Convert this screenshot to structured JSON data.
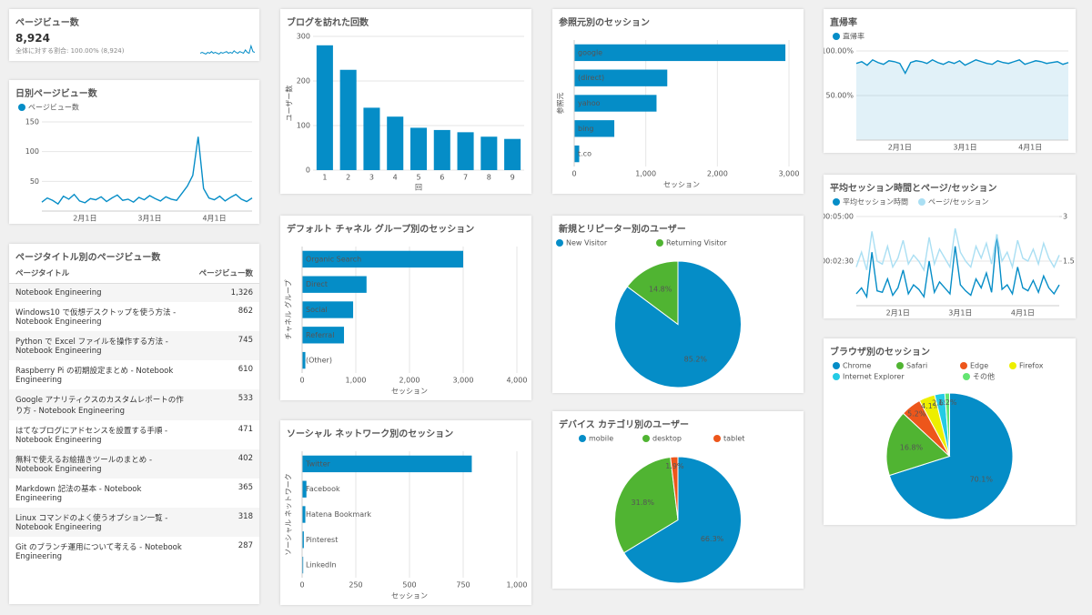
{
  "widgets": [
    {
      "title": "ページビュー数",
      "metric": {
        "value": "8,924",
        "note": "全体に対する割合: 100.00% (8,924)"
      },
      "chart_data": {
        "type": "line",
        "series": [
          {
            "color": "#058dc7",
            "values": [
              5,
              6,
              5,
              4,
              6,
              5,
              7,
              5,
              6,
              5,
              4,
              6,
              5,
              6,
              7,
              5,
              6,
              5,
              8,
              6,
              5,
              7,
              6,
              5,
              9,
              6,
              5,
              14,
              7,
              6
            ]
          }
        ],
        "ylim": [
          0,
          20
        ]
      }
    },
    {
      "title": "日別ページビュー数",
      "chart_data": {
        "type": "line",
        "categories": [
          null,
          null,
          null,
          null,
          null,
          null,
          null,
          null,
          "2月1日",
          null,
          null,
          null,
          null,
          null,
          null,
          null,
          null,
          null,
          null,
          null,
          "3月1日",
          null,
          null,
          null,
          null,
          null,
          null,
          null,
          null,
          null,
          null,
          null,
          "4月1日",
          null,
          null,
          null,
          null,
          null,
          null,
          null
        ],
        "series": [
          {
            "name": "ページビュー数",
            "color": "#058dc7",
            "values": [
              15,
              22,
              18,
              12,
              25,
              20,
              28,
              17,
              14,
              21,
              19,
              24,
              16,
              22,
              27,
              18,
              20,
              15,
              23,
              19,
              26,
              21,
              17,
              24,
              20,
              18,
              30,
              42,
              60,
              125,
              38,
              22,
              19,
              25,
              17,
              23,
              28,
              20,
              16,
              22
            ]
          }
        ],
        "ylim": [
          0,
          150
        ],
        "yticks": [
          50,
          100,
          150
        ],
        "grid": true
      }
    },
    {
      "title": "ページタイトル別のページビュー数",
      "table": {
        "header": [
          "ページタイトル",
          "ページビュー数"
        ],
        "rows": [
          [
            "Notebook Engineering",
            "1,326"
          ],
          [
            "Windows10 で仮想デスクトップを使う方法 - Notebook Engineering",
            "862"
          ],
          [
            "Python で Excel ファイルを操作する方法 - Notebook Engineering",
            "745"
          ],
          [
            "Raspberry Pi の初期設定まとめ - Notebook Engineering",
            "610"
          ],
          [
            "Google アナリティクスのカスタムレポートの作り方 - Notebook Engineering",
            "533"
          ],
          [
            "はてなブログにアドセンスを設置する手順 - Notebook Engineering",
            "471"
          ],
          [
            "無料で使えるお絵描きツールのまとめ - Notebook Engineering",
            "402"
          ],
          [
            "Markdown 記法の基本 - Notebook Engineering",
            "365"
          ],
          [
            "Linux コマンドのよく使うオプション一覧 - Notebook Engineering",
            "318"
          ],
          [
            "Git のブランチ運用について考える - Notebook Engineering",
            "287"
          ]
        ]
      }
    },
    {
      "title": "ブログを訪れた回数",
      "chart_data": {
        "type": "bar",
        "categories": [
          "1",
          "2",
          "3",
          "4",
          "5",
          "6",
          "7",
          "8",
          "9"
        ],
        "values": [
          280,
          225,
          140,
          120,
          95,
          90,
          85,
          75,
          70
        ],
        "color": "#058dc7",
        "ylim": [
          0,
          300
        ],
        "yticks": [
          0,
          100,
          200,
          300
        ],
        "grid": true,
        "x_label": "回",
        "y_label": "ユーザー数"
      }
    },
    {
      "title": "デフォルト チャネル グループ別のセッション",
      "chart_data": {
        "type": "hbar",
        "categories": [
          "Organic Search",
          "Direct",
          "Social",
          "Referral",
          "(Other)"
        ],
        "values": [
          3000,
          1200,
          950,
          780,
          60
        ],
        "color": "#058dc7",
        "xlim": [
          0,
          4000
        ],
        "xticks": [
          0,
          {
            "value": 1000,
            "label": "1,000"
          },
          {
            "value": 2000,
            "label": "2,000"
          },
          {
            "value": 3000,
            "label": "3,000"
          },
          {
            "value": 4000,
            "label": "4,000"
          }
        ],
        "grid": true,
        "x_label": "セッション",
        "y_label": "チャネル グループ"
      }
    },
    {
      "title": "ソーシャル ネットワーク別のセッション",
      "chart_data": {
        "type": "hbar",
        "categories": [
          "Twitter",
          "Facebook",
          "Hatena Bookmark",
          "Pinterest",
          "LinkedIn"
        ],
        "values": [
          790,
          20,
          15,
          8,
          5
        ],
        "color": "#058dc7",
        "xlim": [
          0,
          1000
        ],
        "xticks": [
          0,
          250,
          500,
          750,
          {
            "value": 1000,
            "label": "1,000"
          }
        ],
        "grid": true,
        "x_label": "セッション",
        "y_label": "ソーシャル ネットワーク"
      }
    },
    {
      "title": "参照元別のセッション",
      "chart_data": {
        "type": "hbar",
        "categories": [
          "google",
          "(direct)",
          "yahoo",
          "bing",
          "t.co"
        ],
        "values": [
          2950,
          1300,
          1150,
          560,
          70
        ],
        "color": "#058dc7",
        "xlim": [
          0,
          3000
        ],
        "xticks": [
          0,
          {
            "value": 1000,
            "label": "1,000"
          },
          {
            "value": 2000,
            "label": "2,000"
          },
          {
            "value": 3000,
            "label": "3,000"
          }
        ],
        "grid": true,
        "x_label": "セッション",
        "y_label": "参照元"
      }
    },
    {
      "title": "新規とリピーター別のユーザー",
      "chart_data": {
        "type": "pie",
        "categories": [
          "New Visitor",
          "Returning Visitor"
        ],
        "values": [
          85.2,
          14.8
        ],
        "value_labels": [
          "85.2%",
          "14.8%"
        ],
        "colors": [
          "#058dc7",
          "#50b432"
        ]
      }
    },
    {
      "title": "デバイス カテゴリ別のユーザー",
      "chart_data": {
        "type": "pie",
        "categories": [
          "mobile",
          "desktop",
          "tablet"
        ],
        "values": [
          66.3,
          31.8,
          1.9
        ],
        "value_labels": [
          "66.3%",
          "31.8%",
          "1.9%"
        ],
        "colors": [
          "#058dc7",
          "#50b432",
          "#ed561b"
        ]
      }
    },
    {
      "title": "直帰率",
      "chart_data": {
        "type": "area",
        "categories": [
          null,
          null,
          null,
          null,
          null,
          null,
          null,
          null,
          "2月1日",
          null,
          null,
          null,
          null,
          null,
          null,
          null,
          null,
          null,
          null,
          null,
          "3月1日",
          null,
          null,
          null,
          null,
          null,
          null,
          null,
          null,
          null,
          null,
          null,
          "4月1日",
          null,
          null,
          null,
          null,
          null,
          null,
          null
        ],
        "series": [
          {
            "name": "直帰率",
            "color": "#058dc7",
            "values": [
              86,
              88,
              84,
              90,
              87,
              85,
              89,
              88,
              86,
              75,
              87,
              89,
              88,
              86,
              90,
              87,
              85,
              88,
              86,
              89,
              84,
              87,
              90,
              88,
              86,
              85,
              89,
              87,
              86,
              88,
              90,
              85,
              87,
              89,
              88,
              86,
              87,
              88,
              85,
              87
            ]
          }
        ],
        "ylim": [
          0,
          100
        ],
        "yticks": [
          {
            "value": 50,
            "label": "50.00%"
          },
          {
            "value": 100,
            "label": "100.00%"
          }
        ],
        "grid": true
      }
    },
    {
      "title": "平均セッション時間とページ/セッション",
      "chart_data": {
        "type": "line",
        "categories": [
          null,
          null,
          null,
          null,
          null,
          null,
          null,
          null,
          "2月1日",
          null,
          null,
          null,
          null,
          null,
          null,
          null,
          null,
          null,
          null,
          null,
          "3月1日",
          null,
          null,
          null,
          null,
          null,
          null,
          null,
          null,
          null,
          null,
          null,
          "4月1日",
          null,
          null,
          null,
          null,
          null,
          null,
          null
        ],
        "series": [
          {
            "name": "平均セッション時間",
            "color": "#058dc7",
            "values": [
              40,
              60,
              30,
              180,
              50,
              45,
              90,
              35,
              60,
              120,
              40,
              70,
              55,
              30,
              150,
              45,
              80,
              60,
              40,
              200,
              70,
              50,
              35,
              90,
              60,
              110,
              45,
              240,
              55,
              70,
              40,
              130,
              60,
              50,
              85,
              45,
              100,
              60,
              40,
              70
            ]
          },
          {
            "name": "ページ/セッション",
            "color": "#aadff3",
            "axis": "y2",
            "values": [
              1.3,
              1.8,
              1.2,
              2.5,
              1.5,
              1.4,
              2.0,
              1.3,
              1.6,
              2.2,
              1.4,
              1.7,
              1.5,
              1.2,
              2.3,
              1.4,
              1.9,
              1.6,
              1.3,
              2.6,
              1.8,
              1.5,
              1.3,
              2.0,
              1.6,
              2.1,
              1.4,
              2.4,
              1.5,
              1.8,
              1.3,
              2.2,
              1.6,
              1.5,
              1.9,
              1.4,
              2.1,
              1.6,
              1.3,
              1.7
            ]
          }
        ],
        "ylim": [
          0,
          300
        ],
        "yticks": [
          {
            "value": 150,
            "label": "00:02:30"
          },
          {
            "value": 300,
            "label": "00:05:00"
          }
        ],
        "y2lim": [
          0,
          3
        ],
        "y2ticks": [
          1.5,
          3
        ],
        "grid": true
      }
    },
    {
      "title": "ブラウザ別のセッション",
      "chart_data": {
        "type": "pie",
        "categories": [
          "Chrome",
          "Safari",
          "Edge",
          "Firefox",
          "Internet Explorer",
          "その他"
        ],
        "values": [
          70.1,
          16.8,
          5.2,
          4.1,
          2.6,
          1.2
        ],
        "value_labels": [
          "70.1%",
          "16.8%",
          "5.2%",
          "4.1%",
          "2.6%",
          "1.2%"
        ],
        "colors": [
          "#058dc7",
          "#50b432",
          "#ed561b",
          "#edef00",
          "#24cbe5",
          "#64e572"
        ]
      }
    }
  ]
}
